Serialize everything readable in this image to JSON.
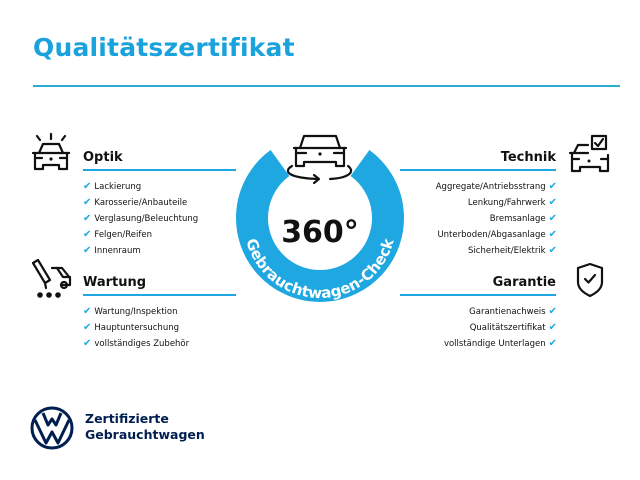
{
  "title": "Qualitätszertifikat",
  "colors": {
    "accent": "#1ea7e1",
    "title": "#1aa2dc",
    "brand_navy": "#001e50"
  },
  "center": {
    "value": "360°",
    "ring_text": "Gebrauchtwagen-Check",
    "icon": "car-rotate-icon"
  },
  "sections": {
    "optik": {
      "heading": "Optik",
      "icon": "car-lights-icon",
      "items": [
        "Lackierung",
        "Karosserie/Anbauteile",
        "Verglasung/Beleuchtung",
        "Felgen/Reifen",
        "Innenraum"
      ]
    },
    "wartung": {
      "heading": "Wartung",
      "icon": "service-tools-icon",
      "items": [
        "Wartung/Inspektion",
        "Hauptuntersuchung",
        "vollständiges Zubehör"
      ]
    },
    "technik": {
      "heading": "Technik",
      "icon": "car-checkbox-icon",
      "items": [
        "Aggregate/Antriebsstrang",
        "Lenkung/Fahrwerk",
        "Bremsanlage",
        "Unterboden/Abgasanlage",
        "Sicherheit/Elektrik"
      ]
    },
    "garantie": {
      "heading": "Garantie",
      "icon": "shield-check-icon",
      "items": [
        "Garantienachweis",
        "Qualitätszertifikat",
        "vollständige Unterlagen"
      ]
    }
  },
  "check_symbol": "✔",
  "brand": {
    "line1": "Zertifizierte",
    "line2": "Gebrauchtwagen",
    "logo": "VW"
  }
}
